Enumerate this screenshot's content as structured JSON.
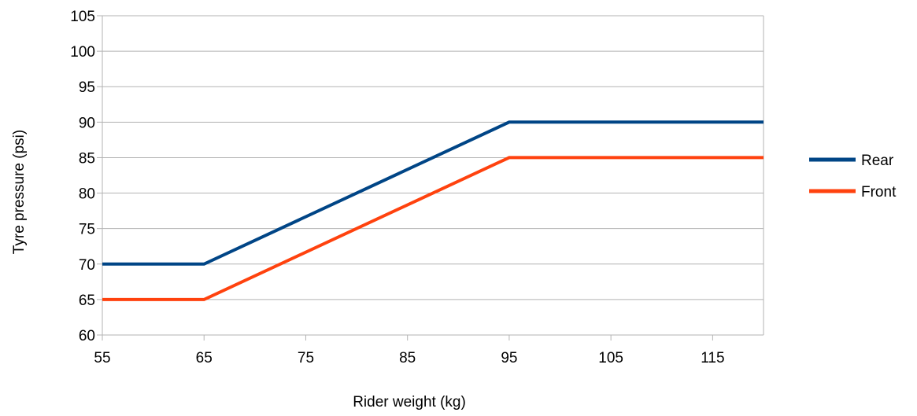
{
  "chart_data": {
    "type": "line",
    "title": "",
    "xlabel": "Rider weight (kg)",
    "ylabel": "Tyre pressure (psi)",
    "xlim": [
      55,
      120
    ],
    "ylim": [
      60,
      105
    ],
    "x_ticks": [
      55,
      65,
      75,
      85,
      95,
      105,
      115
    ],
    "y_ticks": [
      60,
      65,
      70,
      75,
      80,
      85,
      90,
      95,
      100,
      105
    ],
    "grid": true,
    "legend_position": "right",
    "x": [
      55,
      65,
      95,
      120
    ],
    "series": [
      {
        "name": "Rear",
        "values": [
          70,
          70,
          90,
          90
        ],
        "color": "#004586"
      },
      {
        "name": "Front",
        "values": [
          65,
          65,
          85,
          85
        ],
        "color": "#ff420e"
      }
    ]
  }
}
